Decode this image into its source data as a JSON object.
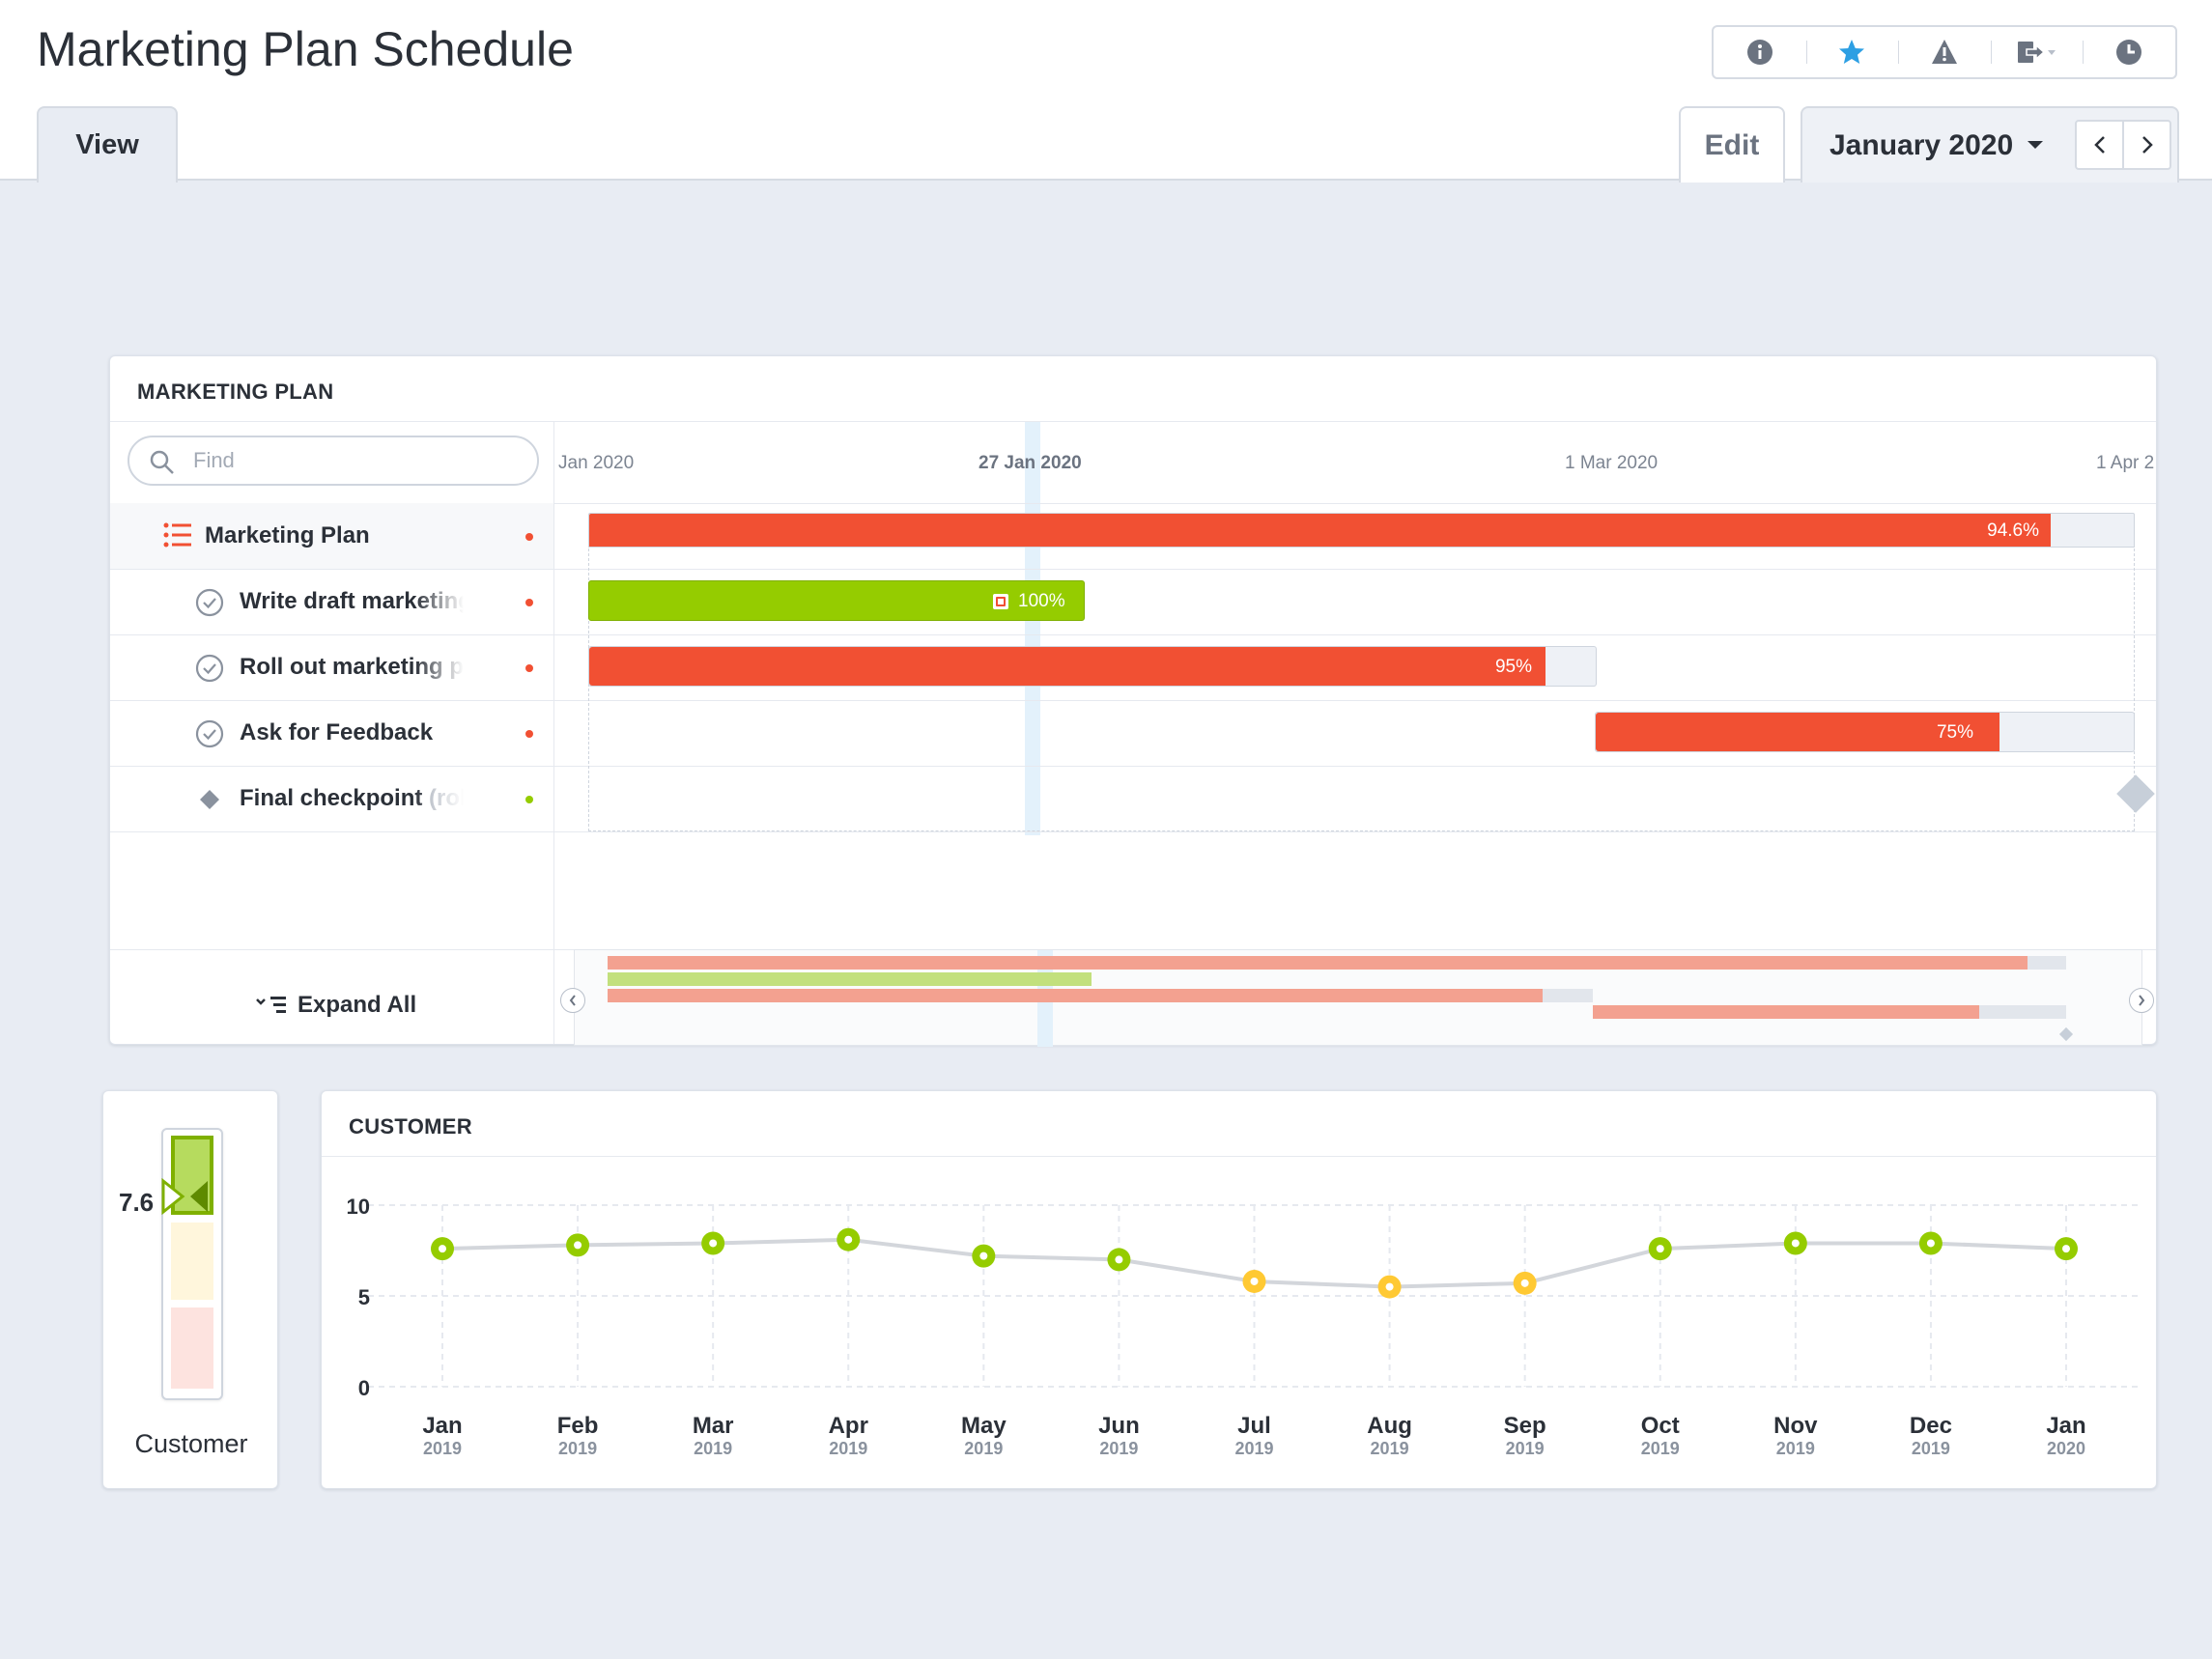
{
  "page": {
    "title": "Marketing Plan Schedule"
  },
  "toolbar": {
    "icons": [
      "info-icon",
      "star-icon",
      "warning-icon",
      "export-icon",
      "history-icon"
    ],
    "accent_color": "#2d9fe3"
  },
  "tabs": {
    "view_label": "View",
    "edit_label": "Edit",
    "period_label": "January 2020"
  },
  "gantt": {
    "title": "MARKETING PLAN",
    "find_placeholder": "Find",
    "dates": [
      "Jan 2020",
      "27 Jan 2020",
      "1 Mar 2020",
      "1 Apr 2"
    ],
    "today_label": "27 Jan 2020",
    "tasks": [
      {
        "label": "Marketing Plan",
        "type": "group",
        "status": "red",
        "progress_label": "94.6%",
        "progress": 94.6
      },
      {
        "label": "Write draft marketing",
        "type": "task",
        "status": "red",
        "progress_label": "100%",
        "progress": 100
      },
      {
        "label": "Roll out marketing pl",
        "type": "task",
        "status": "red",
        "progress_label": "95%",
        "progress": 95
      },
      {
        "label": "Ask for Feedback",
        "type": "task",
        "status": "red",
        "progress_label": "75%",
        "progress": 75
      },
      {
        "label": "Final checkpoint",
        "label_suffix": "(rol",
        "type": "milestone",
        "status": "green"
      }
    ],
    "expand_label": "Expand All",
    "colors": {
      "red": "#f15033",
      "green": "#95cc00",
      "grey": "#c7cfd9"
    }
  },
  "score": {
    "value": "7.6",
    "caption": "Customer",
    "level": 7.6
  },
  "customer": {
    "title": "CUSTOMER"
  },
  "chart_data": {
    "type": "line",
    "title": "CUSTOMER",
    "categories": [
      "Jan",
      "Feb",
      "Mar",
      "Apr",
      "May",
      "Jun",
      "Jul",
      "Aug",
      "Sep",
      "Oct",
      "Nov",
      "Dec",
      "Jan"
    ],
    "years": [
      "2019",
      "2019",
      "2019",
      "2019",
      "2019",
      "2019",
      "2019",
      "2019",
      "2019",
      "2019",
      "2019",
      "2019",
      "2020"
    ],
    "values": [
      7.6,
      7.8,
      7.9,
      8.1,
      7.2,
      7.0,
      5.8,
      5.5,
      5.7,
      7.6,
      7.9,
      7.9,
      7.6
    ],
    "point_status": [
      "green",
      "green",
      "green",
      "green",
      "green",
      "green",
      "yellow",
      "yellow",
      "yellow",
      "green",
      "green",
      "green",
      "green"
    ],
    "yticks": [
      0,
      5,
      10
    ],
    "ylim": [
      0,
      10
    ],
    "colors": {
      "green": "#95cc00",
      "yellow": "#ffc933",
      "line": "#d3d6db"
    }
  }
}
